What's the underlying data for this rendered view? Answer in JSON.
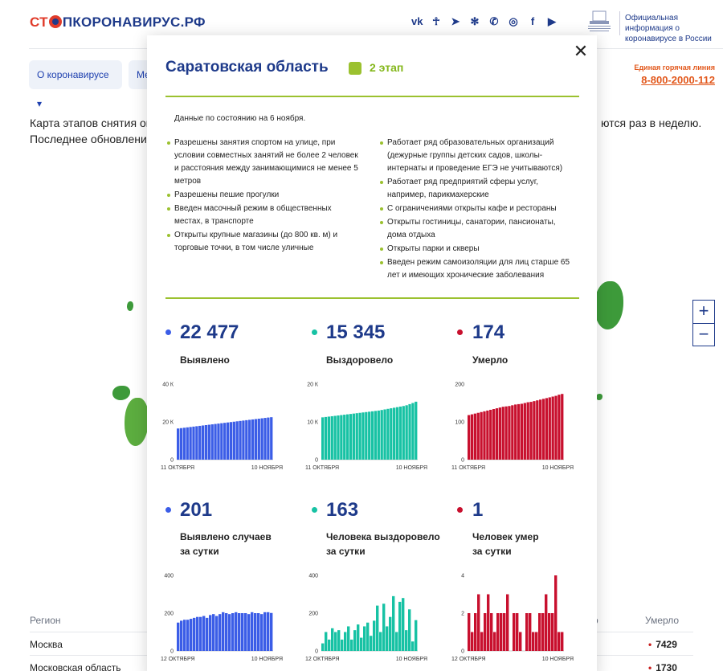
{
  "header": {
    "logo_part1": "СТ",
    "logo_part2": "ПКОРОНАВИРУС.РФ",
    "gov_info": "Официальная информация о коронавирусе в России",
    "socials": [
      "vk-icon",
      "ok-icon",
      "telegram-icon",
      "odnoklassniki-icon",
      "viber-icon",
      "instagram-icon",
      "facebook-icon",
      "youtube-icon"
    ]
  },
  "nav": {
    "about": "О коронавирусе ▾",
    "more": "Ме"
  },
  "hotline": {
    "label": "Единая горячая линия",
    "number": "8-800-2000-112"
  },
  "intro": {
    "line1": "Карта этапов снятия огр",
    "line2": "Последнее обновление",
    "line1_right": "ются раз в неделю."
  },
  "table": {
    "col_region": "Регион",
    "col_partial": "о",
    "col_died": "Умерло",
    "rows": [
      {
        "name": "Москва",
        "died": "7429"
      },
      {
        "name": "Московская область",
        "died": "1730"
      }
    ]
  },
  "zoom": {
    "in": "+",
    "out": "−"
  },
  "modal": {
    "title": "Саратовская область",
    "stage": "2 этап",
    "date": "Данные по состоянию на 6 ноября.",
    "left_list": [
      "Разрешены занятия спортом на улице, при условии совместных занятий не более 2 человек и расстояния между занимающимися не менее 5 метров",
      "Разрешены пешие прогулки",
      "Введен масочный режим в общественных местах, в транспорте",
      "Открыты крупные магазины (до 800 кв. м) и торговые точки, в том числе уличные"
    ],
    "right_list": [
      "Работает ряд образовательных организаций (дежурные группы детских садов, школы-интернаты и проведение ЕГЭ не учитываются)",
      "Работает ряд предприятий сферы услуг, например, парикмахерские",
      "С ограничениями открыты кафе и рестораны",
      "Открыты гостиницы, санатории, пансионаты, дома отдыха",
      "Открыты парки и скверы",
      "Введен режим самоизоляции для лиц старше 65 лет и имеющих хронические заболевания"
    ],
    "stats": {
      "detected": {
        "value": "22 477",
        "label": "Выявлено"
      },
      "recovered": {
        "value": "15 345",
        "label": "Выздоровело"
      },
      "died": {
        "value": "174",
        "label": "Умерло"
      },
      "detected_day": {
        "value": "201",
        "label1": "Выявлено случаев",
        "label2": "за сутки"
      },
      "recovered_day": {
        "value": "163",
        "label1": "Человека выздоровело",
        "label2": "за сутки"
      },
      "died_day": {
        "value": "1",
        "label1": "Человек умер",
        "label2": "за сутки"
      }
    },
    "colors": {
      "detected": "#3b5de7",
      "recovered": "#17c2a4",
      "died": "#c8102e",
      "stage": "#9bc12f"
    }
  },
  "chart_data": [
    {
      "type": "bar",
      "name": "Выявлено",
      "x_start": "11 ОКТЯБРЯ",
      "x_end": "10 НОЯБРЯ",
      "yticks": [
        "0",
        "20 К",
        "40 К"
      ],
      "ylim": [
        0,
        40000
      ],
      "color": "#3b5de7",
      "values": [
        16500,
        16700,
        16900,
        17100,
        17300,
        17500,
        17700,
        17900,
        18100,
        18300,
        18500,
        18700,
        18900,
        19100,
        19300,
        19500,
        19700,
        19900,
        20100,
        20300,
        20500,
        20700,
        20900,
        21100,
        21300,
        21500,
        21700,
        21900,
        22100,
        22300,
        22477
      ]
    },
    {
      "type": "bar",
      "name": "Выздоровело",
      "x_start": "11 ОКТЯБРЯ",
      "x_end": "10 НОЯБРЯ",
      "yticks": [
        "0",
        "10 К",
        "20 К"
      ],
      "ylim": [
        0,
        20000
      ],
      "color": "#17c2a4",
      "values": [
        11200,
        11300,
        11400,
        11500,
        11600,
        11700,
        11800,
        11900,
        12000,
        12100,
        12200,
        12300,
        12400,
        12500,
        12600,
        12700,
        12800,
        12900,
        13000,
        13150,
        13300,
        13450,
        13600,
        13750,
        13900,
        14050,
        14200,
        14400,
        14700,
        15000,
        15345
      ]
    },
    {
      "type": "bar",
      "name": "Умерло",
      "x_start": "11 ОКТЯБРЯ",
      "x_end": "10 НОЯБРЯ",
      "yticks": [
        "0",
        "100",
        "200"
      ],
      "ylim": [
        0,
        200
      ],
      "color": "#c8102e",
      "values": [
        118,
        120,
        122,
        124,
        126,
        128,
        130,
        132,
        134,
        136,
        138,
        140,
        141,
        142,
        144,
        146,
        147,
        148,
        150,
        152,
        153,
        155,
        157,
        159,
        161,
        163,
        165,
        167,
        169,
        172,
        174
      ]
    },
    {
      "type": "bar",
      "name": "Выявлено случаев за сутки",
      "x_start": "12 ОКТЯБРЯ",
      "x_end": "10 НОЯБРЯ",
      "yticks": [
        "0",
        "200",
        "400"
      ],
      "ylim": [
        0,
        400
      ],
      "color": "#3b5de7",
      "values": [
        150,
        160,
        165,
        165,
        170,
        175,
        180,
        180,
        185,
        175,
        190,
        195,
        185,
        195,
        205,
        200,
        195,
        200,
        205,
        200,
        200,
        200,
        195,
        205,
        200,
        200,
        195,
        205,
        205,
        201
      ]
    },
    {
      "type": "bar",
      "name": "Человека выздоровело за сутки",
      "x_start": "12 ОКТЯБРЯ",
      "x_end": "10 НОЯБРЯ",
      "yticks": [
        "0",
        "200",
        "400"
      ],
      "ylim": [
        0,
        400
      ],
      "color": "#17c2a4",
      "values": [
        40,
        100,
        60,
        120,
        100,
        110,
        60,
        100,
        130,
        60,
        110,
        140,
        70,
        130,
        150,
        80,
        160,
        240,
        100,
        250,
        130,
        180,
        290,
        100,
        260,
        280,
        110,
        220,
        50,
        163
      ]
    },
    {
      "type": "bar",
      "name": "Человек умер за сутки",
      "x_start": "12 ОКТЯБРЯ",
      "x_end": "10 НОЯБРЯ",
      "yticks": [
        "0",
        "2",
        "4"
      ],
      "ylim": [
        0,
        4
      ],
      "color": "#c8102e",
      "values": [
        2,
        1,
        2,
        3,
        1,
        2,
        3,
        2,
        1,
        2,
        2,
        2,
        3,
        0,
        2,
        2,
        1,
        0,
        2,
        2,
        1,
        1,
        2,
        2,
        3,
        2,
        2,
        4,
        1,
        1
      ]
    }
  ]
}
